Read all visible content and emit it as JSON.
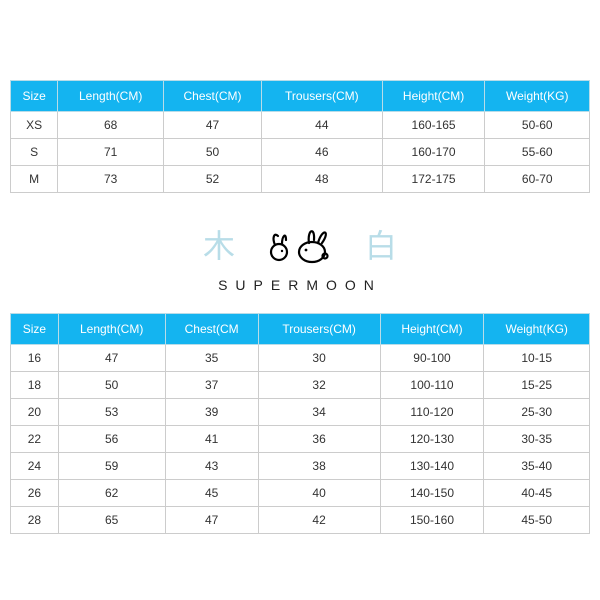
{
  "colors": {
    "header_bg": "#14b4f0",
    "header_text": "#ffffff",
    "header_border": "#b8dce8",
    "cell_border": "#cccccc",
    "cell_text": "#333333",
    "cjk_text": "#b8dde8",
    "brand_text": "#222222",
    "bunny_stroke": "#000000"
  },
  "typography": {
    "table_fontsize": 12,
    "brand_letterspacing": 8,
    "brand_fontsize": 14,
    "cjk_fontsize": 32
  },
  "table_adult": {
    "columns": [
      "Size",
      "Length(CM)",
      "Chest(CM)",
      "Trousers(CM)",
      "Height(CM)",
      "Weight(KG)"
    ],
    "rows": [
      [
        "XS",
        "68",
        "47",
        "44",
        "160-165",
        "50-60"
      ],
      [
        "S",
        "71",
        "50",
        "46",
        "160-170",
        "55-60"
      ],
      [
        "M",
        "73",
        "52",
        "48",
        "172-175",
        "60-70"
      ]
    ]
  },
  "brand": {
    "left_char": "木",
    "right_char": "白",
    "name": "SUPERMOON"
  },
  "table_kids": {
    "columns": [
      "Size",
      "Length(CM)",
      "Chest(CM",
      "Trousers(CM)",
      "Height(CM)",
      "Weight(KG)"
    ],
    "rows": [
      [
        "16",
        "47",
        "35",
        "30",
        "90-100",
        "10-15"
      ],
      [
        "18",
        "50",
        "37",
        "32",
        "100-110",
        "15-25"
      ],
      [
        "20",
        "53",
        "39",
        "34",
        "110-120",
        "25-30"
      ],
      [
        "22",
        "56",
        "41",
        "36",
        "120-130",
        "30-35"
      ],
      [
        "24",
        "59",
        "43",
        "38",
        "130-140",
        "35-40"
      ],
      [
        "26",
        "62",
        "45",
        "40",
        "140-150",
        "40-45"
      ],
      [
        "28",
        "65",
        "47",
        "42",
        "150-160",
        "45-50"
      ]
    ]
  }
}
